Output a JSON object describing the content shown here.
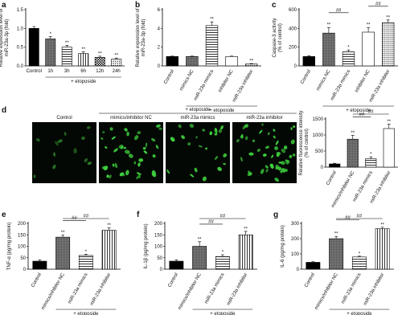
{
  "chart_data": [
    {
      "type": "bar",
      "panel": "a",
      "ylabel": [
        "Relative expression level of",
        "miR-23a-3p (fold)"
      ],
      "categories": [
        "Control",
        "1h",
        "3h",
        "6h",
        "12h",
        "24h"
      ],
      "values": [
        1.0,
        0.72,
        0.5,
        0.33,
        0.23,
        0.18
      ],
      "errors": [
        0.05,
        0.06,
        0.05,
        0.05,
        0.03,
        0.03
      ],
      "annotations": [
        null,
        "*",
        "**",
        "**",
        "**",
        "**"
      ],
      "fills": [
        "black",
        "grey",
        "hlines",
        "vlines",
        "checker",
        "dots"
      ],
      "group_label": "+ etoposide",
      "ylim": [
        0,
        1.5
      ],
      "yticks": [
        {
          "value": 0,
          "label": "0.0"
        },
        {
          "value": 0.5,
          "label": "0.5"
        },
        {
          "value": 1,
          "label": "1.0"
        },
        {
          "value": 1.5,
          "label": "1.5"
        }
      ]
    },
    {
      "type": "bar",
      "panel": "b",
      "ylabel": [
        "Relative expression level of",
        "miR-23a-3p (fold)"
      ],
      "categories": [
        "Control",
        "mimics NC",
        "miR-23a mimics",
        "inhibitor NC",
        "miR-23a inhibitor"
      ],
      "values": [
        1.0,
        1.0,
        4.3,
        1.0,
        0.2
      ],
      "errors": [
        0.05,
        0.05,
        0.4,
        0.05,
        0.05
      ],
      "annotations": [
        null,
        null,
        "**",
        null,
        "**"
      ],
      "fills": [
        "black",
        "grey",
        "hlines",
        "white",
        "dots"
      ],
      "group_label": "+ etoposide",
      "ylim": [
        0,
        6
      ],
      "yticks": [
        0,
        2,
        4,
        6
      ]
    },
    {
      "type": "bar",
      "panel": "c",
      "ylabel": [
        "Caspase-3 activity",
        "(% of control)"
      ],
      "categories": [
        "Control",
        "mimics NC",
        "miR-23a mimics",
        "inhibitor NC",
        "miR-23a inhibitor"
      ],
      "values": [
        100,
        350,
        150,
        360,
        460
      ],
      "errors": [
        10,
        60,
        20,
        50,
        30
      ],
      "annotations": [
        null,
        "**",
        "*",
        "**",
        "**"
      ],
      "fills": [
        "black",
        "grey",
        "hlines",
        "white",
        "dots"
      ],
      "brackets": [
        "##",
        "##"
      ],
      "group_label": "+ etoposide",
      "ylim": [
        0,
        600
      ],
      "yticks": [
        0,
        200,
        400,
        600
      ]
    },
    {
      "type": "bar",
      "panel": "d",
      "ylabel": [
        "Relative fluorescence intensity",
        "(% of control)"
      ],
      "categories": [
        "Control",
        "mimics/inhibitor NC",
        "miR-23a mimics",
        "miR-23a inhibitor"
      ],
      "values": [
        100,
        870,
        260,
        1200
      ],
      "errors": [
        20,
        120,
        60,
        140
      ],
      "annotations": [
        null,
        "**",
        "*",
        "**"
      ],
      "fills": [
        "black",
        "grey",
        "hlines",
        "white"
      ],
      "brackets": [
        "##",
        "##"
      ],
      "ylim": [
        0,
        1500
      ],
      "yticks": [
        0,
        500,
        1000,
        1500
      ]
    },
    {
      "type": "bar",
      "panel": "e",
      "ylabel": [
        "TNF-α (pg/mg protein)"
      ],
      "categories": [
        "Control",
        "mimics/inhibitor NC",
        "miR-23a mimics",
        "miR-23a inhibitor"
      ],
      "values": [
        35,
        140,
        60,
        170
      ],
      "errors": [
        5,
        10,
        5,
        10
      ],
      "annotations": [
        null,
        "**",
        "*",
        "**"
      ],
      "fills": [
        "black",
        "grey",
        "hlines",
        "vlines"
      ],
      "brackets": [
        "##",
        "##"
      ],
      "group_label": "+ etoposide",
      "ylim": [
        0,
        200
      ],
      "yticks": [
        0,
        50,
        100,
        150,
        200
      ]
    },
    {
      "type": "bar",
      "panel": "f",
      "ylabel": [
        "IL-1β (pg/mg protein)"
      ],
      "categories": [
        "Control",
        "mimics/inhibitor NC",
        "miR-23a mimics",
        "miR-23a inhibitor"
      ],
      "values": [
        35,
        100,
        55,
        150
      ],
      "errors": [
        5,
        20,
        8,
        15
      ],
      "annotations": [
        null,
        "**",
        "*",
        "**"
      ],
      "fills": [
        "black",
        "grey",
        "hlines",
        "vlines"
      ],
      "brackets": [
        "##",
        "##"
      ],
      "group_label": "+ etoposide",
      "ylim": [
        0,
        200
      ],
      "yticks": [
        0,
        50,
        100,
        150,
        200
      ]
    },
    {
      "type": "bar",
      "panel": "g",
      "ylabel": [
        "IL-6 (pg/mg protein)"
      ],
      "categories": [
        "Control",
        "mimics/inhibitor NC",
        "miR-23a mimics",
        "miR-23a inhibitor"
      ],
      "values": [
        45,
        200,
        80,
        265
      ],
      "errors": [
        5,
        15,
        5,
        10
      ],
      "annotations": [
        null,
        "**",
        "*",
        "**"
      ],
      "fills": [
        "black",
        "grey",
        "hlines",
        "vlines"
      ],
      "brackets": [
        "##",
        "##"
      ],
      "group_label": "+ etoposide",
      "ylim": [
        0,
        300
      ],
      "yticks": [
        0,
        100,
        200,
        300
      ]
    }
  ],
  "micrographs": {
    "labels": [
      "Control",
      "mimics/inhibitor NC",
      "miR-23a mimics",
      "miR-23a inhibitor"
    ],
    "group_label": "+ etoposide"
  }
}
